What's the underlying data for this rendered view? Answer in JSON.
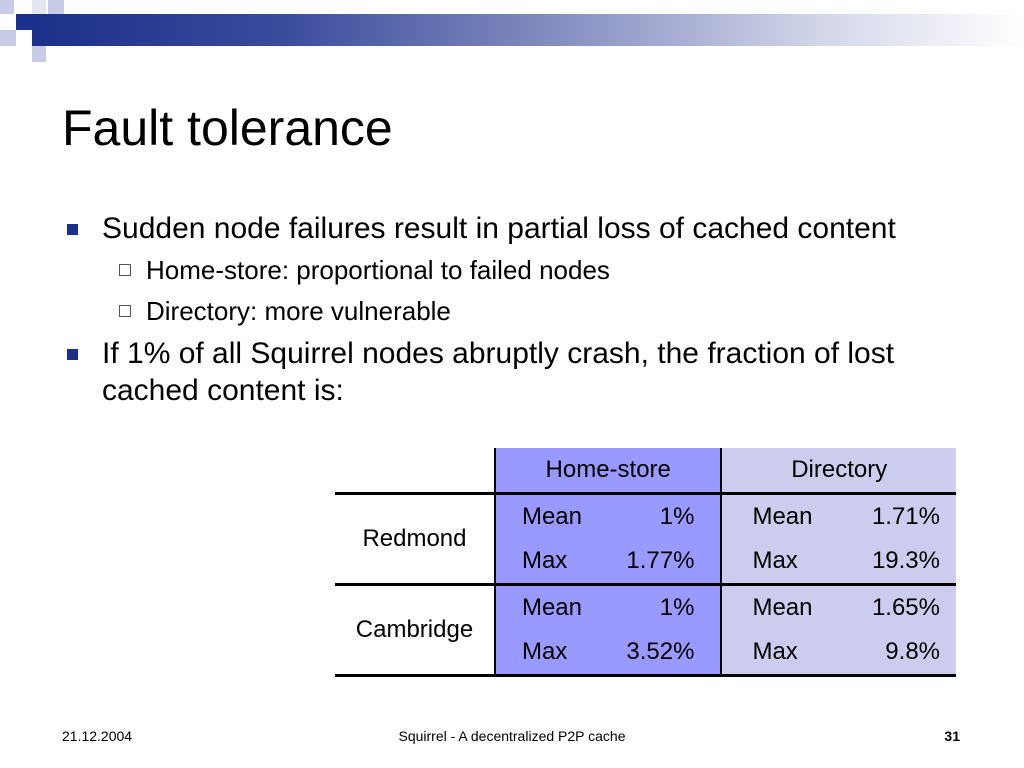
{
  "slide": {
    "title": "Fault tolerance",
    "bullets": [
      {
        "text": "Sudden node failures result in partial loss of cached content",
        "sub": [
          "Home-store: proportional to failed nodes",
          "Directory: more vulnerable"
        ]
      },
      {
        "text": "If 1% of all Squirrel nodes abruptly crash, the fraction of lost cached content is:",
        "sub": []
      }
    ],
    "table": {
      "headers": [
        "",
        "Home-store",
        "Directory"
      ],
      "rows": [
        {
          "location": "Redmond",
          "home_store": [
            {
              "label": "Mean",
              "value": "1%"
            },
            {
              "label": "Max",
              "value": "1.77%"
            }
          ],
          "directory": [
            {
              "label": "Mean",
              "value": "1.71%"
            },
            {
              "label": "Max",
              "value": "19.3%"
            }
          ]
        },
        {
          "location": "Cambridge",
          "home_store": [
            {
              "label": "Mean",
              "value": "1%"
            },
            {
              "label": "Max",
              "value": "3.52%"
            }
          ],
          "directory": [
            {
              "label": "Mean",
              "value": "1.65%"
            },
            {
              "label": "Max",
              "value": "9.8%"
            }
          ]
        }
      ]
    },
    "footer": {
      "date": "21.12.2004",
      "title": "Squirrel - A decentralized P2P cache",
      "page": "31"
    },
    "colors": {
      "accent": "#1c2f8a",
      "home_store_fill": "#9999ff",
      "directory_fill": "#ccccee"
    }
  }
}
